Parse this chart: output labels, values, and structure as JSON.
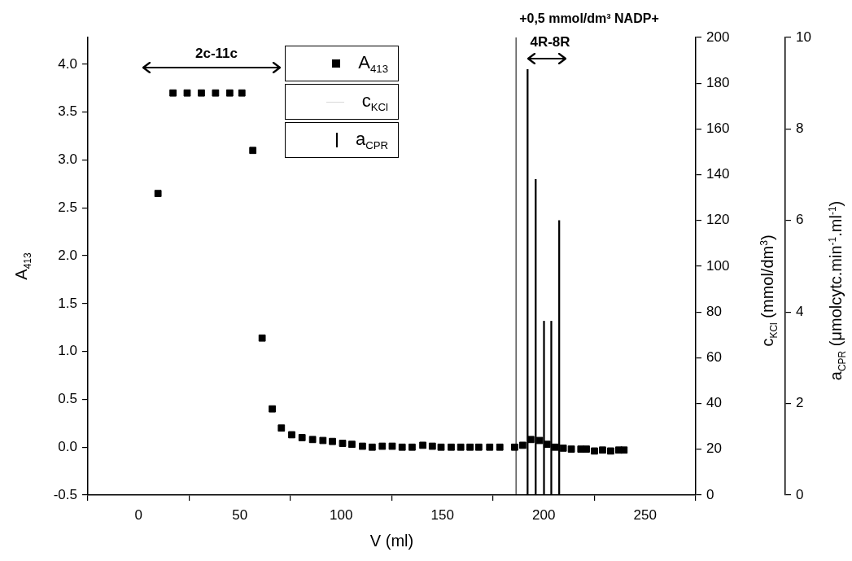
{
  "chart_data": {
    "type": "scatter",
    "xlabel": "V (ml)",
    "ylabel": "A$_{413}$",
    "y2label": "c$_{KCl}$ (mmol/dm$^{3}$)",
    "y3label": "a$_{CPR}$ (μmolcytc.min$^{-1}$.ml$^{-1}$)",
    "xlim": [
      -25,
      275
    ],
    "xticks": [
      0,
      50,
      100,
      150,
      200,
      250
    ],
    "ylim": [
      -0.5,
      4.28
    ],
    "yticks": [
      -0.5,
      {
        "value": 0,
        "label": "0.0"
      },
      0.5,
      {
        "value": 1,
        "label": "1.0"
      },
      1.5,
      {
        "value": 2,
        "label": "2.0"
      },
      2.5,
      {
        "value": 3,
        "label": "3.0"
      },
      3.5,
      {
        "value": 4,
        "label": "4.0"
      }
    ],
    "y2lim": [
      0,
      200
    ],
    "y2ticks": [
      0,
      20,
      40,
      60,
      80,
      100,
      120,
      140,
      160,
      180,
      200
    ],
    "y3lim": [
      0,
      10
    ],
    "y3ticks": [
      0,
      2,
      4,
      6,
      8,
      10
    ],
    "marker": "square",
    "legend": "top",
    "grid": false,
    "series": [
      {
        "name": "A$_{413}$",
        "color": "#000000",
        "x": [
          9.6,
          17,
          24,
          31,
          38,
          45,
          51,
          56.4,
          61,
          66,
          70.5,
          75.6,
          80.7,
          85.9,
          91,
          95.7,
          100.7,
          105.3,
          110.5,
          115.3,
          120.3,
          125.2,
          130.1,
          135,
          140.3,
          145,
          149.3,
          154.3,
          159,
          163.6,
          167.9,
          173.3,
          178.3,
          185.6,
          189.6,
          193.6,
          197.9,
          201.6,
          205.6,
          209.6,
          213.6,
          218.3,
          221,
          225,
          229,
          233,
          237,
          239.6
        ],
        "values": [
          2.65,
          3.7,
          3.7,
          3.7,
          3.7,
          3.7,
          3.7,
          3.1,
          1.14,
          0.4,
          0.2,
          0.13,
          0.1,
          0.08,
          0.07,
          0.06,
          0.04,
          0.03,
          0.01,
          0.0,
          0.01,
          0.01,
          0.0,
          0.0,
          0.02,
          0.01,
          0.0,
          0.0,
          0.0,
          0.0,
          0.0,
          0.0,
          0.0,
          0.0,
          0.02,
          0.08,
          0.07,
          0.03,
          0.0,
          -0.01,
          -0.02,
          -0.02,
          -0.02,
          -0.04,
          -0.03,
          -0.04,
          -0.03,
          -0.03
        ]
      },
      {
        "name": "c$_{KCl}$",
        "type": "line",
        "axis": "y2",
        "color": "#d9d9d9"
      },
      {
        "name": "a$_{CPR}$",
        "type": "bar",
        "axis": "y3",
        "color": "#000000",
        "x": [
          192,
          196,
          200.1,
          203.7,
          207.6
        ],
        "values": [
          9.3,
          6.9,
          3.8,
          3.8,
          6.0
        ]
      }
    ],
    "ref_lines": [
      {
        "axis": "x",
        "value": 186.3,
        "label": "+0,5 mmol/dm³ NADP+",
        "color": "#000000"
      }
    ],
    "annotations": [
      "2c-11c",
      "4R-8R"
    ]
  }
}
